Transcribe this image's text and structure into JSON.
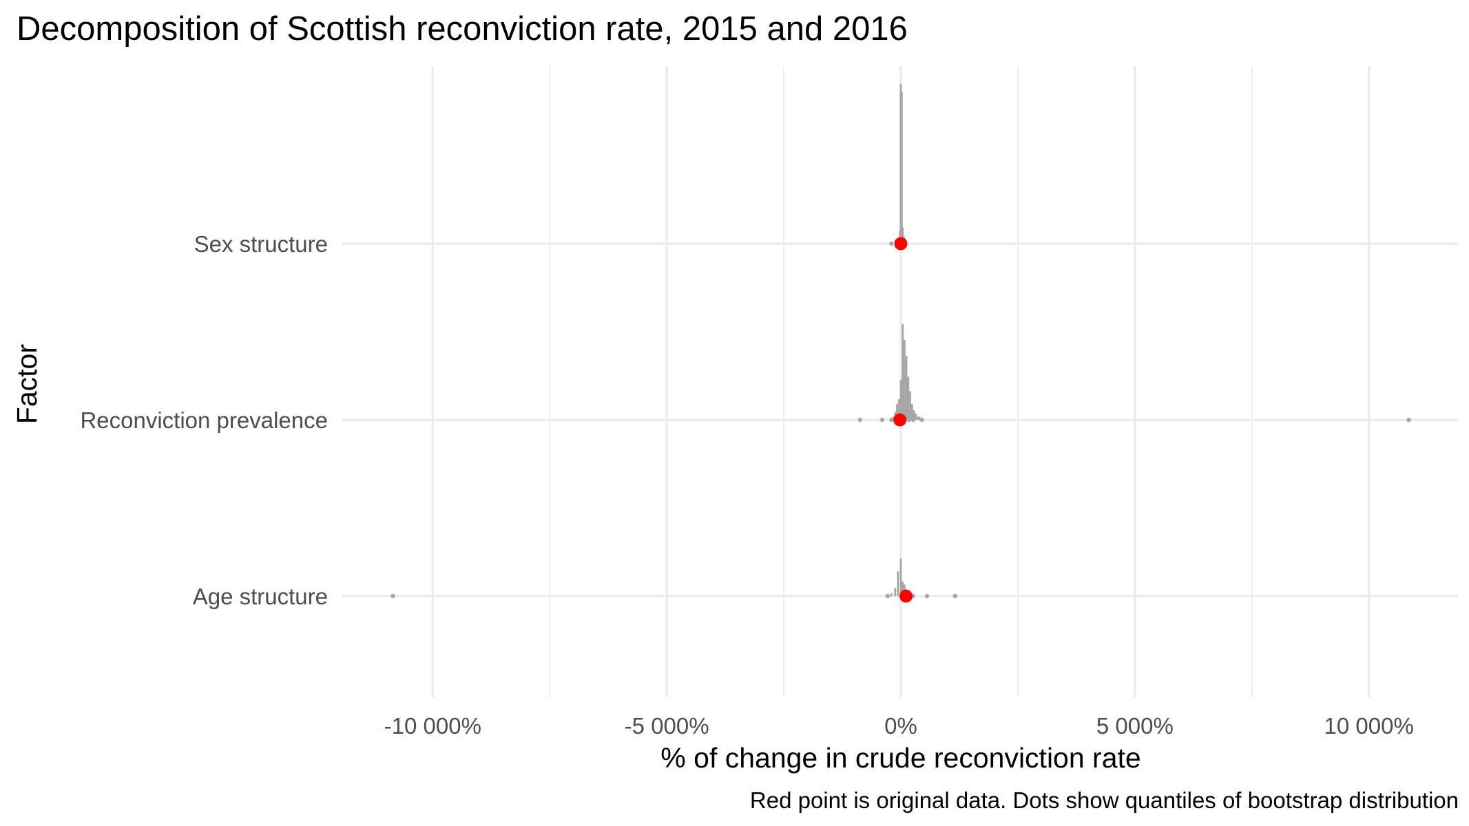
{
  "chart_data": {
    "type": "scatter",
    "title": "Decomposition of Scottish reconviction rate, 2015 and 2016",
    "xlabel": "% of change in crude reconviction rate",
    "ylabel": "Factor",
    "caption": "Red point is original data. Dots show quantiles of bootstrap distribution",
    "xlim": [
      -12000,
      12000
    ],
    "x_ticks": [
      -10000,
      -5000,
      0,
      5000,
      10000
    ],
    "x_tick_labels": [
      "-10 000%",
      "-5 000%",
      "0%",
      "5 000%",
      "10 000%"
    ],
    "x_minor_ticks": [
      -7500,
      -2500,
      2500,
      7500
    ],
    "grid": true,
    "categories": [
      "Sex structure",
      "Reconviction prevalence",
      "Age structure"
    ],
    "original_points": [
      {
        "factor": "Sex structure",
        "x": 0
      },
      {
        "factor": "Reconviction prevalence",
        "x": -20
      },
      {
        "factor": "Age structure",
        "x": 110
      }
    ],
    "bootstrap_quantile_dots": [
      {
        "factor": "Sex structure",
        "x": [
          -200,
          -50,
          0,
          20,
          60
        ]
      },
      {
        "factor": "Reconviction prevalence",
        "x": [
          -870,
          -400,
          -200,
          -50,
          80,
          170,
          260,
          450,
          10850
        ]
      },
      {
        "factor": "Age structure",
        "x": [
          -10850,
          -280,
          260,
          560,
          1160
        ]
      }
    ],
    "distribution_spikes": [
      {
        "factor": "Sex structure",
        "bins": [
          {
            "x": -60,
            "height": 0.02
          },
          {
            "x": -20,
            "height": 0.08
          },
          {
            "x": 0,
            "height": 1.0
          },
          {
            "x": 20,
            "height": 0.95
          },
          {
            "x": 40,
            "height": 0.1
          },
          {
            "x": 60,
            "height": 0.05
          }
        ]
      },
      {
        "factor": "Reconviction prevalence",
        "bins": [
          {
            "x": -160,
            "height": 0.02
          },
          {
            "x": -120,
            "height": 0.05
          },
          {
            "x": -80,
            "height": 0.1
          },
          {
            "x": -40,
            "height": 0.13
          },
          {
            "x": 0,
            "height": 0.25
          },
          {
            "x": 40,
            "height": 0.6
          },
          {
            "x": 80,
            "height": 0.5
          },
          {
            "x": 120,
            "height": 0.4
          },
          {
            "x": 160,
            "height": 0.27
          },
          {
            "x": 200,
            "height": 0.18
          },
          {
            "x": 240,
            "height": 0.1
          },
          {
            "x": 280,
            "height": 0.06
          },
          {
            "x": 320,
            "height": 0.04
          },
          {
            "x": 360,
            "height": 0.02
          },
          {
            "x": 400,
            "height": 0.02
          }
        ]
      },
      {
        "factor": "Age structure",
        "bins": [
          {
            "x": -280,
            "height": 0.04
          },
          {
            "x": -200,
            "height": 0.05
          },
          {
            "x": -120,
            "height": 0.14
          },
          {
            "x": -60,
            "height": 0.43
          },
          {
            "x": 0,
            "height": 0.65
          },
          {
            "x": 40,
            "height": 0.25
          },
          {
            "x": 80,
            "height": 0.2
          },
          {
            "x": 120,
            "height": 0.1
          },
          {
            "x": 160,
            "height": 0.06
          },
          {
            "x": 220,
            "height": 0.03
          }
        ]
      }
    ],
    "colors": {
      "original_point": "#ff0000",
      "bootstrap": "#a6a6a6",
      "grid": "#ebebeb",
      "text": "#000000",
      "tick_text": "#4d4d4d"
    }
  }
}
